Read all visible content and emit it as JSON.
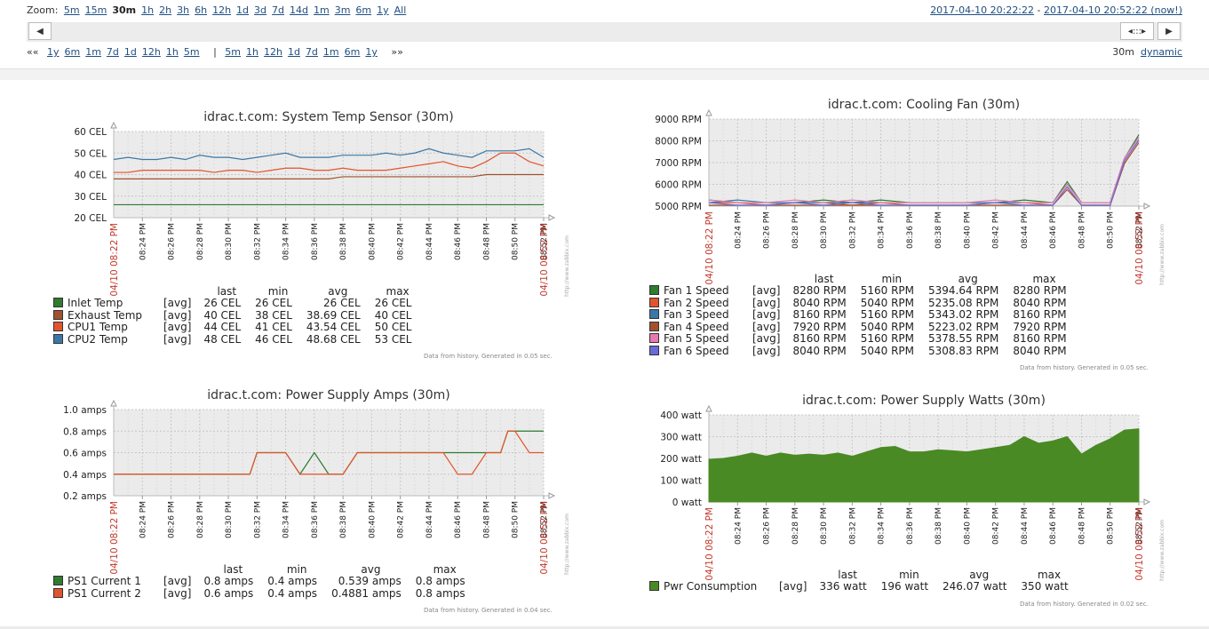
{
  "zoom": {
    "label": "Zoom:",
    "options": [
      "5m",
      "15m",
      "30m",
      "1h",
      "2h",
      "3h",
      "6h",
      "12h",
      "1d",
      "3d",
      "7d",
      "14d",
      "1m",
      "3m",
      "6m",
      "1y",
      "All"
    ],
    "active": "30m"
  },
  "period": {
    "from": "2017-04-10 20:22:22",
    "sep": " - ",
    "to": "2017-04-10 20:52:22 (now!)"
  },
  "nav": {
    "back_marker": "««",
    "back": [
      "1y",
      "6m",
      "1m",
      "7d",
      "1d",
      "12h",
      "1h",
      "5m"
    ],
    "divider": "|",
    "forward": [
      "5m",
      "1h",
      "12h",
      "1d",
      "7d",
      "1m",
      "6m",
      "1y"
    ],
    "fwd_marker": "»»",
    "period_value": "30m",
    "mode": "dynamic"
  },
  "scroll_handle": "◂:::▸",
  "time_ticks": [
    "08:24 PM",
    "08:26 PM",
    "08:28 PM",
    "08:30 PM",
    "08:32 PM",
    "08:34 PM",
    "08:36 PM",
    "08:38 PM",
    "08:40 PM",
    "08:42 PM",
    "08:44 PM",
    "08:46 PM",
    "08:48 PM",
    "08:50 PM",
    "08:52 PM"
  ],
  "time_start": "04/10 08:22 PM",
  "time_end": "04/10 08:52 PM",
  "watermark": "http://www.zabbix.com",
  "legend_headers": {
    "last": "last",
    "min": "min",
    "avg": "avg",
    "max": "max"
  },
  "legend_func": "[avg]",
  "colors": {
    "green": "#2f7b2f",
    "brown": "#a0522d",
    "orange": "#e4542b",
    "blue": "#3a78a8",
    "pink": "#e87ab0",
    "purple": "#6b6bd8",
    "area": "#4a8a25"
  },
  "graphs": {
    "temp": {
      "title": "idrac.t.com: System Temp Sensor (30m)",
      "footnote": "Data from history. Generated in 0.05 sec.",
      "ylabels": [
        "60 CEL",
        "50 CEL",
        "40 CEL",
        "30 CEL",
        "20 CEL"
      ],
      "legend": [
        {
          "name": "Inlet Temp",
          "color": "#2f7b2f",
          "last": "26 CEL",
          "min": "26 CEL",
          "avg": "26 CEL",
          "max": "26 CEL"
        },
        {
          "name": "Exhaust Temp",
          "color": "#a0522d",
          "last": "40 CEL",
          "min": "38 CEL",
          "avg": "38.69 CEL",
          "max": "40 CEL"
        },
        {
          "name": "CPU1 Temp",
          "color": "#e4542b",
          "last": "44 CEL",
          "min": "41 CEL",
          "avg": "43.54 CEL",
          "max": "50 CEL"
        },
        {
          "name": "CPU2 Temp",
          "color": "#3a78a8",
          "last": "48 CEL",
          "min": "46 CEL",
          "avg": "48.68 CEL",
          "max": "53 CEL"
        }
      ]
    },
    "fan": {
      "title": "idrac.t.com: Cooling Fan (30m)",
      "footnote": "Data from history. Generated in 0.05 sec.",
      "ylabels": [
        "9000 RPM",
        "8000 RPM",
        "7000 RPM",
        "6000 RPM",
        "5000 RPM"
      ],
      "legend": [
        {
          "name": "Fan 1 Speed",
          "color": "#2f7b2f",
          "last": "8280 RPM",
          "min": "5160 RPM",
          "avg": "5394.64 RPM",
          "max": "8280 RPM"
        },
        {
          "name": "Fan 2 Speed",
          "color": "#e4542b",
          "last": "8040 RPM",
          "min": "5040 RPM",
          "avg": "5235.08 RPM",
          "max": "8040 RPM"
        },
        {
          "name": "Fan 3 Speed",
          "color": "#3a78a8",
          "last": "8160 RPM",
          "min": "5160 RPM",
          "avg": "5343.02 RPM",
          "max": "8160 RPM"
        },
        {
          "name": "Fan 4 Speed",
          "color": "#a0522d",
          "last": "7920 RPM",
          "min": "5040 RPM",
          "avg": "5223.02 RPM",
          "max": "7920 RPM"
        },
        {
          "name": "Fan 5 Speed",
          "color": "#e87ab0",
          "last": "8160 RPM",
          "min": "5160 RPM",
          "avg": "5378.55 RPM",
          "max": "8160 RPM"
        },
        {
          "name": "Fan 6 Speed",
          "color": "#6b6bd8",
          "last": "8040 RPM",
          "min": "5040 RPM",
          "avg": "5308.83 RPM",
          "max": "8040 RPM"
        }
      ]
    },
    "amps": {
      "title": "idrac.t.com: Power Supply Amps (30m)",
      "footnote": "Data from history. Generated in 0.04 sec.",
      "ylabels": [
        "1.0 amps",
        "0.8 amps",
        "0.6 amps",
        "0.4 amps",
        "0.2 amps"
      ],
      "legend": [
        {
          "name": "PS1 Current 1",
          "color": "#2f7b2f",
          "last": "0.8 amps",
          "min": "0.4 amps",
          "avg": "0.539 amps",
          "max": "0.8 amps"
        },
        {
          "name": "PS1 Current 2",
          "color": "#e4542b",
          "last": "0.6 amps",
          "min": "0.4 amps",
          "avg": "0.4881 amps",
          "max": "0.8 amps"
        }
      ]
    },
    "watts": {
      "title": "idrac.t.com: Power Supply Watts (30m)",
      "footnote": "Data from history. Generated in 0.02 sec.",
      "ylabels": [
        "400 watt",
        "300 watt",
        "200 watt",
        "100 watt",
        "0 watt"
      ],
      "legend": [
        {
          "name": "Pwr Consumption",
          "color": "#4a8a25",
          "last": "336 watt",
          "min": "196 watt",
          "avg": "246.07 watt",
          "max": "350 watt"
        }
      ]
    }
  },
  "chart_data": [
    {
      "type": "line",
      "title": "idrac.t.com: System Temp Sensor (30m)",
      "x_range": [
        "04/10 08:22 PM",
        "04/10 08:52 PM"
      ],
      "ylim": [
        20,
        60
      ],
      "x": [
        0,
        1,
        2,
        3,
        4,
        5,
        6,
        7,
        8,
        9,
        10,
        11,
        12,
        13,
        14,
        15,
        16,
        17,
        18,
        19,
        20,
        21,
        22,
        23,
        24,
        25,
        26,
        27,
        28,
        29,
        30
      ],
      "series": [
        {
          "name": "Inlet Temp",
          "values": [
            26,
            26,
            26,
            26,
            26,
            26,
            26,
            26,
            26,
            26,
            26,
            26,
            26,
            26,
            26,
            26,
            26,
            26,
            26,
            26,
            26,
            26,
            26,
            26,
            26,
            26,
            26,
            26,
            26,
            26,
            26
          ]
        },
        {
          "name": "Exhaust Temp",
          "values": [
            38,
            38,
            38,
            38,
            38,
            38,
            38,
            38,
            38,
            38,
            38,
            38,
            38,
            38,
            38,
            38,
            39,
            39,
            39,
            39,
            39,
            39,
            39,
            39,
            39,
            39,
            40,
            40,
            40,
            40,
            40
          ]
        },
        {
          "name": "CPU1 Temp",
          "values": [
            41,
            41,
            42,
            42,
            42,
            42,
            42,
            41,
            42,
            42,
            41,
            42,
            43,
            43,
            42,
            42,
            43,
            42,
            42,
            42,
            43,
            44,
            45,
            46,
            44,
            43,
            46,
            50,
            50,
            46,
            44
          ]
        },
        {
          "name": "CPU2 Temp",
          "values": [
            47,
            48,
            47,
            47,
            48,
            47,
            49,
            48,
            48,
            47,
            48,
            49,
            50,
            48,
            48,
            48,
            49,
            49,
            49,
            50,
            49,
            50,
            52,
            50,
            49,
            48,
            51,
            51,
            51,
            52,
            48
          ]
        }
      ]
    },
    {
      "type": "line",
      "title": "idrac.t.com: Cooling Fan (30m)",
      "x_range": [
        "04/10 08:22 PM",
        "04/10 08:52 PM"
      ],
      "ylim": [
        5000,
        9000
      ],
      "x": [
        0,
        2,
        4,
        6,
        8,
        10,
        12,
        14,
        16,
        18,
        20,
        22,
        24,
        25,
        26,
        28,
        29,
        30
      ],
      "series": [
        {
          "name": "Fan 1 Speed",
          "values": [
            5280,
            5160,
            5160,
            5160,
            5280,
            5160,
            5280,
            5160,
            5160,
            5160,
            5160,
            5280,
            5160,
            6120,
            5160,
            5160,
            7200,
            8280
          ]
        },
        {
          "name": "Fan 2 Speed",
          "values": [
            5160,
            5160,
            5040,
            5160,
            5160,
            5040,
            5160,
            5040,
            5040,
            5040,
            5160,
            5160,
            5040,
            5880,
            5040,
            5040,
            7080,
            8040
          ]
        },
        {
          "name": "Fan 3 Speed",
          "values": [
            5160,
            5280,
            5160,
            5160,
            5160,
            5160,
            5160,
            5160,
            5160,
            5160,
            5160,
            5160,
            5160,
            6000,
            5160,
            5160,
            7200,
            8160
          ]
        },
        {
          "name": "Fan 4 Speed",
          "values": [
            5040,
            5040,
            5040,
            5040,
            5040,
            5040,
            5040,
            5040,
            5040,
            5040,
            5040,
            5040,
            5040,
            5760,
            5040,
            5040,
            6960,
            7920
          ]
        },
        {
          "name": "Fan 5 Speed",
          "values": [
            5280,
            5160,
            5160,
            5280,
            5160,
            5280,
            5160,
            5160,
            5160,
            5160,
            5280,
            5160,
            5160,
            6000,
            5160,
            5160,
            7200,
            8160
          ]
        },
        {
          "name": "Fan 6 Speed",
          "values": [
            5160,
            5040,
            5040,
            5160,
            5040,
            5160,
            5040,
            5040,
            5040,
            5040,
            5160,
            5040,
            5040,
            5880,
            5040,
            5040,
            7080,
            8040
          ]
        }
      ]
    },
    {
      "type": "line",
      "title": "idrac.t.com: Power Supply Amps (30m)",
      "x_range": [
        "04/10 08:22 PM",
        "04/10 08:52 PM"
      ],
      "ylim": [
        0.2,
        1.0
      ],
      "x": [
        0,
        9.5,
        10,
        12,
        13,
        14,
        15,
        16,
        17,
        17.5,
        18,
        23,
        24,
        25,
        26,
        27,
        27.5,
        28,
        29,
        30
      ],
      "series": [
        {
          "name": "PS1 Current 1",
          "values": [
            0.4,
            0.4,
            0.6,
            0.6,
            0.4,
            0.6,
            0.4,
            0.4,
            0.6,
            0.6,
            0.6,
            0.6,
            0.6,
            0.6,
            0.6,
            0.6,
            0.8,
            0.8,
            0.8,
            0.8
          ]
        },
        {
          "name": "PS1 Current 2",
          "values": [
            0.4,
            0.4,
            0.6,
            0.6,
            0.4,
            0.4,
            0.4,
            0.4,
            0.6,
            0.6,
            0.6,
            0.6,
            0.4,
            0.4,
            0.6,
            0.6,
            0.8,
            0.8,
            0.6,
            0.6
          ]
        }
      ]
    },
    {
      "type": "area",
      "title": "idrac.t.com: Power Supply Watts (30m)",
      "x_range": [
        "04/10 08:22 PM",
        "04/10 08:52 PM"
      ],
      "ylim": [
        0,
        400
      ],
      "x": [
        0,
        1,
        2,
        3,
        4,
        5,
        6,
        7,
        8,
        9,
        10,
        11,
        12,
        13,
        14,
        15,
        16,
        17,
        18,
        19,
        20,
        21,
        22,
        23,
        24,
        25,
        26,
        27,
        28,
        29,
        30
      ],
      "series": [
        {
          "name": "Pwr Consumption",
          "values": [
            196,
            200,
            210,
            225,
            210,
            225,
            215,
            220,
            215,
            225,
            210,
            230,
            250,
            255,
            230,
            230,
            240,
            235,
            230,
            240,
            250,
            260,
            300,
            270,
            280,
            300,
            220,
            260,
            290,
            330,
            336
          ]
        }
      ]
    }
  ]
}
